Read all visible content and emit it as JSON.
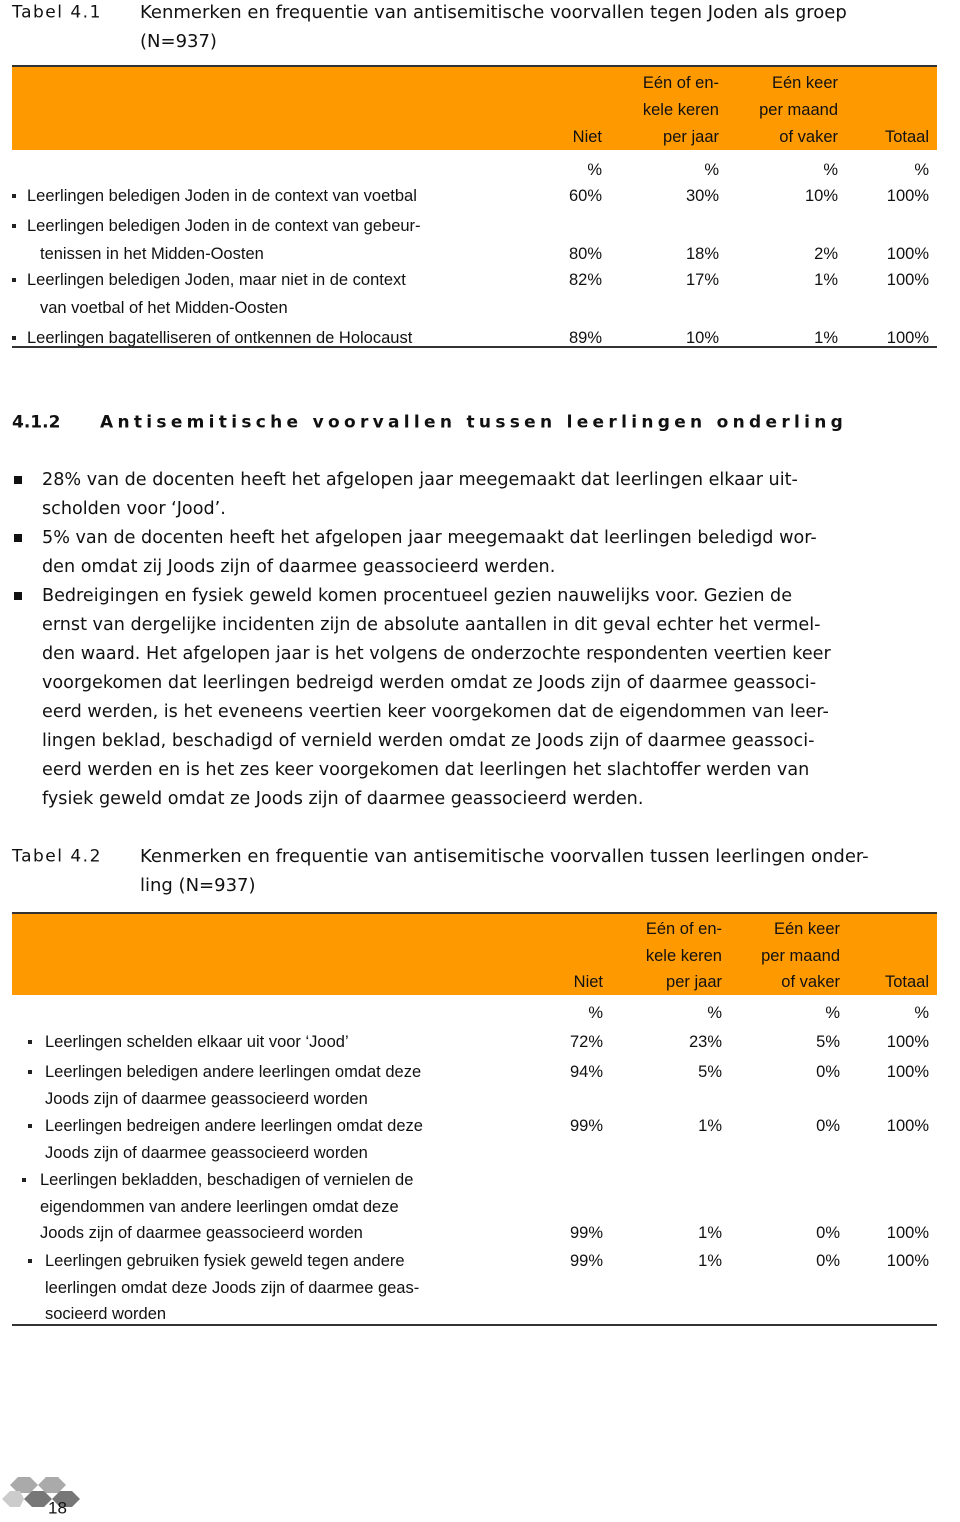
{
  "table1": {
    "label": "Tabel 4.1",
    "caption": [
      "Kenmerken en frequentie van antisemitische voorvallen tegen Joden als groep",
      "(N=937)"
    ],
    "columns": [
      [
        "Niet"
      ],
      [
        "Eén of en-",
        "kele keren",
        "per jaar"
      ],
      [
        "Eén keer",
        "per maand",
        "of vaker"
      ],
      [
        "Totaal"
      ]
    ],
    "units": [
      "%",
      "%",
      "%",
      "%"
    ],
    "rows": [
      {
        "label": [
          "Leerlingen beledigen Joden in de context van voetbal"
        ],
        "cells": [
          "60%",
          "30%",
          "10%",
          "100%"
        ]
      },
      {
        "label": [
          "Leerlingen beledigen Joden in de context van gebeur-",
          "tenissen in het Midden-Oosten"
        ],
        "cells": [
          "80%",
          "18%",
          "2%",
          "100%"
        ]
      },
      {
        "label": [
          "Leerlingen beledigen Joden, maar niet in de context",
          "van voetbal of het Midden-Oosten"
        ],
        "cells": [
          "82%",
          "17%",
          "1%",
          "100%"
        ]
      },
      {
        "label": [
          "Leerlingen bagatelliseren of ontkennen de Holocaust"
        ],
        "cells": [
          "89%",
          "10%",
          "1%",
          "100%"
        ]
      }
    ]
  },
  "section": {
    "number": "4.1.2",
    "title": "Antisemitische voorvallen tussen leerlingen onderling"
  },
  "bullets": [
    [
      "28% van de docenten heeft het afgelopen jaar meegemaakt dat leerlingen elkaar uit-",
      "scholden voor ‘Jood’."
    ],
    [
      "5% van de docenten heeft het afgelopen jaar meegemaakt dat leerlingen beledigd wor-",
      "den omdat zij Joods zijn of daarmee geassocieerd werden."
    ],
    [
      "Bedreigingen en fysiek geweld komen procentueel gezien nauwelijks voor. Gezien de",
      "ernst van dergelijke incidenten zijn de absolute aantallen in dit geval echter het vermel-",
      "den waard. Het afgelopen jaar is het volgens de onderzochte respondenten veertien keer",
      "voorgekomen dat leerlingen bedreigd werden omdat ze Joods zijn of daarmee geassoci-",
      "eerd werden, is het eveneens veertien keer voorgekomen dat de eigendommen van leer-",
      "lingen beklad, beschadigd of vernield werden omdat ze Joods zijn of daarmee geassoci-",
      "eerd werden en is het zes keer voorgekomen dat leerlingen het slachtoffer werden van",
      "fysiek geweld omdat ze Joods zijn of daarmee geassocieerd werden."
    ]
  ],
  "table2": {
    "label": "Tabel 4.2",
    "caption": [
      "Kenmerken en frequentie van antisemitische voorvallen tussen leerlingen onder-",
      "ling (N=937)"
    ],
    "columns": [
      [
        "Niet"
      ],
      [
        "Eén of en-",
        "kele keren",
        "per jaar"
      ],
      [
        "Eén keer",
        "per maand",
        "of vaker"
      ],
      [
        "Totaal"
      ]
    ],
    "units": [
      "%",
      "%",
      "%",
      "%"
    ],
    "rows": [
      {
        "label": [
          "Leerlingen schelden elkaar uit voor ‘Jood’"
        ],
        "cells": [
          "72%",
          "23%",
          "5%",
          "100%"
        ]
      },
      {
        "label": [
          "Leerlingen beledigen andere leerlingen omdat deze",
          "Joods zijn of daarmee geassocieerd worden"
        ],
        "cells": [
          "94%",
          "5%",
          "0%",
          "100%"
        ]
      },
      {
        "label": [
          "Leerlingen bedreigen andere leerlingen omdat deze",
          "Joods zijn of daarmee geassocieerd worden"
        ],
        "cells": [
          "99%",
          "1%",
          "0%",
          "100%"
        ]
      },
      {
        "label": [
          "Leerlingen bekladden, beschadigen of vernielen de",
          "eigendommen van andere leerlingen omdat deze",
          "Joods zijn of daarmee geassocieerd worden"
        ],
        "cells": [
          "99%",
          "1%",
          "0%",
          "100%"
        ]
      },
      {
        "label": [
          "Leerlingen gebruiken fysiek geweld tegen andere",
          "leerlingen omdat deze Joods zijn of daarmee geas-",
          "socieerd worden"
        ],
        "cells": [
          "99%",
          "1%",
          "0%",
          "100%"
        ]
      }
    ]
  },
  "page_number": "18"
}
